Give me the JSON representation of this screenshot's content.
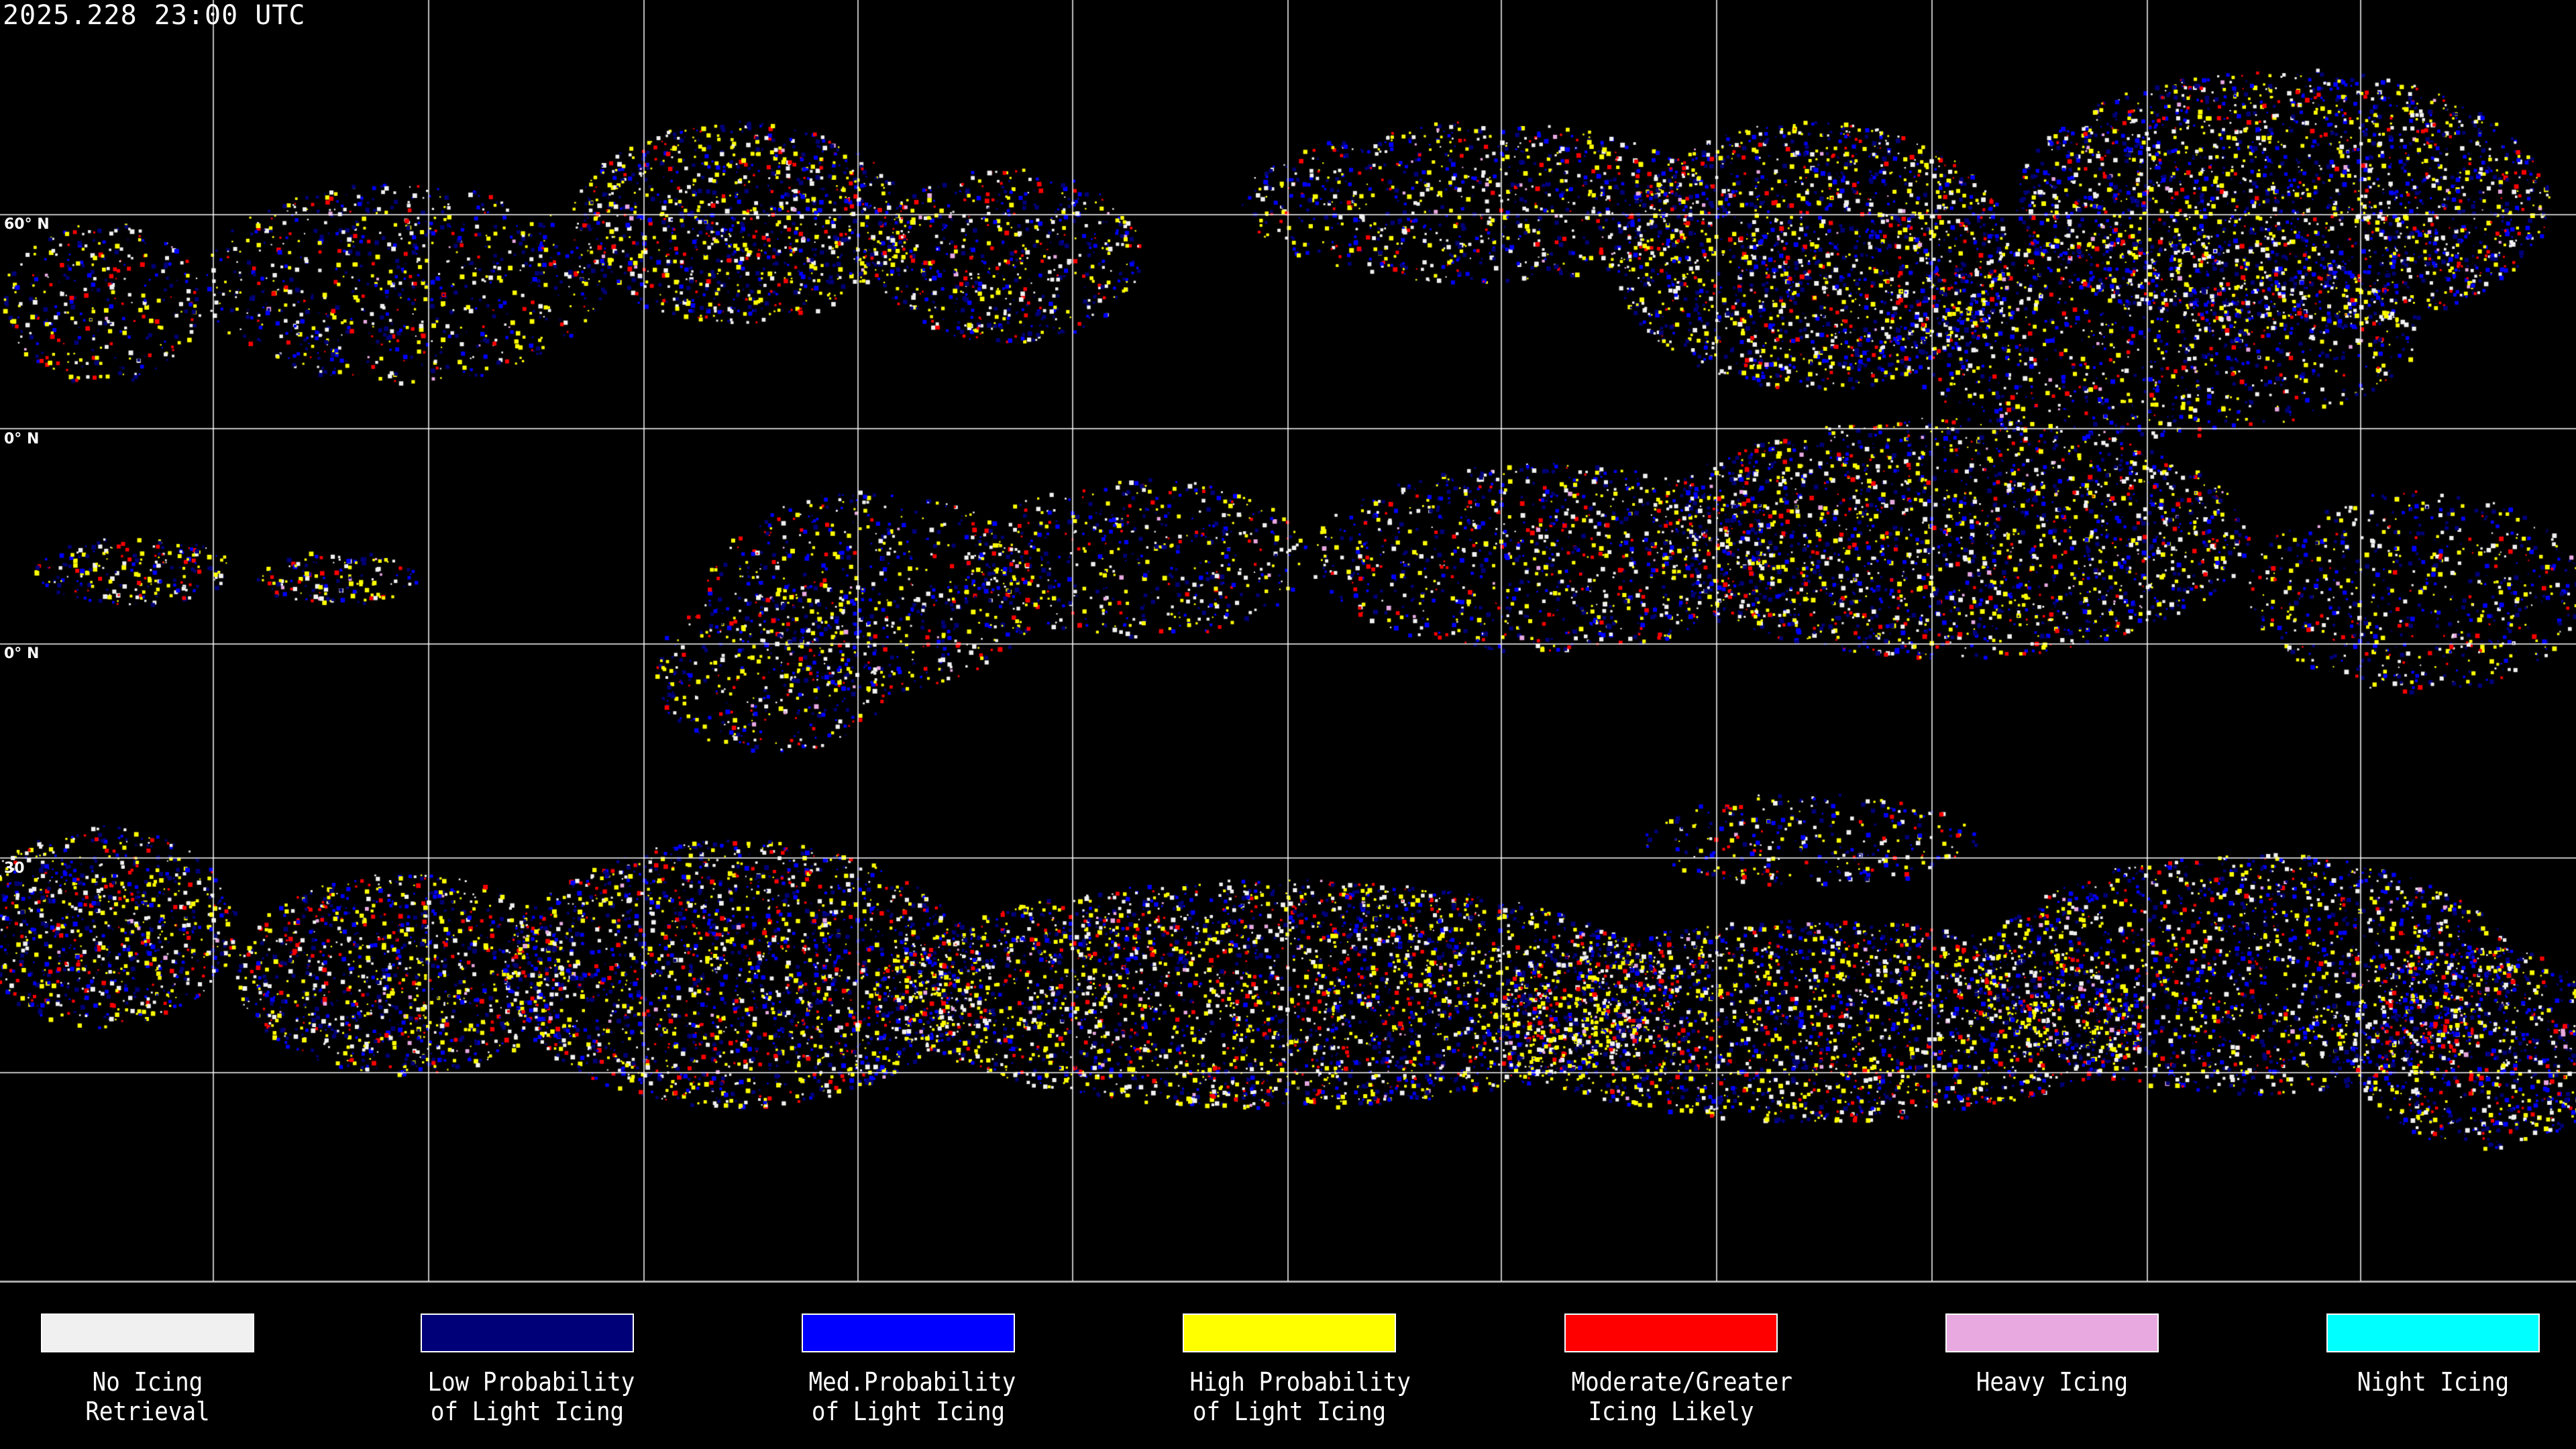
{
  "title": "2025.228 23:00 UTC",
  "lat_labels": [
    "60° N",
    "0° N",
    "0° N",
    "30"
  ],
  "legend": [
    {
      "line1": "No Icing",
      "line2": "Retrieval",
      "color": "#f0f0f0"
    },
    {
      "line1": "Low Probability",
      "line2": "of Light Icing",
      "color": "#000078"
    },
    {
      "line1": "Med.Probability",
      "line2": "of Light Icing",
      "color": "#0000ff"
    },
    {
      "line1": "High Probability",
      "line2": "of Light Icing",
      "color": "#ffff00"
    },
    {
      "line1": "Moderate/Greater",
      "line2": "Icing Likely",
      "color": "#ff0000"
    },
    {
      "line1": "Heavy Icing",
      "line2": "",
      "color": "#e8a8e0"
    },
    {
      "line1": "Night Icing",
      "line2": "",
      "color": "#00ffff"
    }
  ]
}
